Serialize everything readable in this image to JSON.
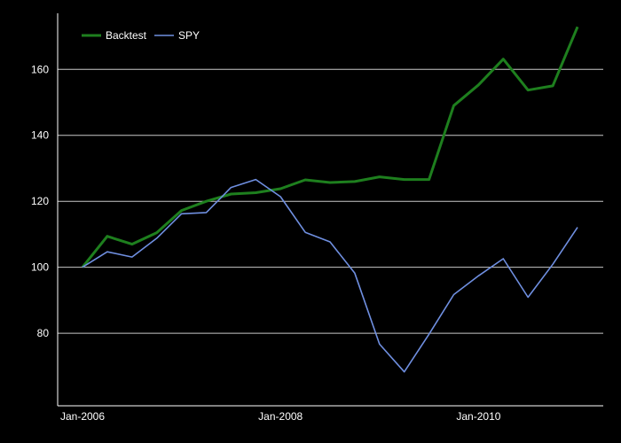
{
  "chart_data": {
    "type": "line",
    "x": [
      "2006-01",
      "2006-04",
      "2006-07",
      "2006-10",
      "2007-01",
      "2007-04",
      "2007-07",
      "2007-10",
      "2008-01",
      "2008-04",
      "2008-07",
      "2008-10",
      "2009-01",
      "2009-04",
      "2009-07",
      "2009-10",
      "2010-01",
      "2010-04",
      "2010-07",
      "2010-10",
      "2011-01"
    ],
    "x_ticks": [
      {
        "label": "Jan-2006",
        "at": "2006-01"
      },
      {
        "label": "Jan-2008",
        "at": "2008-01"
      },
      {
        "label": "Jan-2010",
        "at": "2010-01"
      }
    ],
    "y_ticks": [
      80,
      100,
      120,
      140,
      160
    ],
    "ylim": [
      58,
      177
    ],
    "grid": "horizontal",
    "legend": "top-left",
    "series": [
      {
        "name": "Backtest",
        "color": "#1e7f1e",
        "values": [
          100,
          109.4,
          107,
          110.5,
          117.2,
          120,
          122.2,
          122.6,
          123.8,
          126.5,
          125.7,
          126,
          127.4,
          126.6,
          126.6,
          149,
          155.3,
          163.1,
          153.7,
          155,
          172.9
        ]
      },
      {
        "name": "SPY",
        "color": "#6f8fe0",
        "values": [
          100,
          104.7,
          103.1,
          108.8,
          116.2,
          116.6,
          124.2,
          126.6,
          121.4,
          110.6,
          107.7,
          98.2,
          76.7,
          68.3,
          79.7,
          91.7,
          97.4,
          102.6,
          90.9,
          100.9,
          112.1
        ]
      }
    ]
  }
}
